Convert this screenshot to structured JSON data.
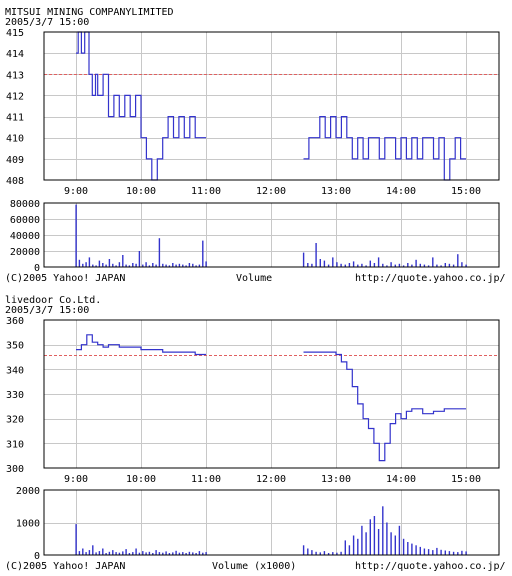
{
  "panels": [
    {
      "company": "MITSUI  MINING  COMPANYLIMITED",
      "datetime": "2005/3/7 15:00",
      "copyright": "(C)2005 Yahoo! JAPAN",
      "volume_label": "Volume",
      "url": "http://quote.yahoo.co.jp/"
    },
    {
      "company": "livedoor  Co.Ltd.",
      "datetime": "2005/3/7 15:00",
      "copyright": "(C)2005 Yahoo! JAPAN",
      "volume_label": "Volume (x1000)",
      "url": "http://quote.yahoo.co.jp/"
    }
  ],
  "colors": {
    "series": "#3333cc",
    "reference": "#e06060",
    "grid": "#c8c8c8"
  },
  "chart_data": [
    {
      "type": "line",
      "x_ticks": [
        "9:00",
        "10:00",
        "11:00",
        "12:00",
        "13:00",
        "14:00",
        "15:00"
      ],
      "y_ticks": [
        408,
        409,
        410,
        411,
        412,
        413,
        414,
        415
      ],
      "ylim": [
        408,
        415
      ],
      "reference_value": 413,
      "grid": true,
      "price_series": {
        "x": [
          "9:00",
          "9:02",
          "9:05",
          "9:08",
          "9:12",
          "9:15",
          "9:18",
          "9:20",
          "9:25",
          "9:30",
          "9:35",
          "9:40",
          "9:45",
          "9:50",
          "9:55",
          "10:00",
          "10:05",
          "10:10",
          "10:15",
          "10:20",
          "10:25",
          "10:30",
          "10:35",
          "10:40",
          "10:45",
          "10:50",
          "10:55",
          "11:00",
          "12:30",
          "12:35",
          "12:40",
          "12:45",
          "12:50",
          "12:55",
          "13:00",
          "13:05",
          "13:10",
          "13:15",
          "13:20",
          "13:25",
          "13:30",
          "13:35",
          "13:40",
          "13:45",
          "13:50",
          "13:55",
          "14:00",
          "14:05",
          "14:10",
          "14:15",
          "14:20",
          "14:25",
          "14:30",
          "14:35",
          "14:40",
          "14:45",
          "14:50",
          "14:55",
          "15:00"
        ],
        "y": [
          414,
          415,
          414,
          415,
          413,
          412,
          413,
          412,
          413,
          411,
          412,
          411,
          412,
          411,
          412,
          410,
          409,
          408,
          409,
          410,
          411,
          410,
          411,
          410,
          411,
          410,
          410,
          410,
          409,
          410,
          410,
          411,
          410,
          411,
          410,
          411,
          410,
          409,
          410,
          409,
          410,
          410,
          409,
          410,
          410,
          409,
          410,
          409,
          410,
          409,
          410,
          410,
          409,
          410,
          408,
          409,
          410,
          409,
          409
        ]
      },
      "volume": {
        "ylabel": "Volume",
        "y_ticks": [
          0,
          20000,
          40000,
          60000,
          80000
        ],
        "ylim": [
          0,
          80000
        ],
        "values": [
          78000,
          9000,
          4000,
          6000,
          12000,
          3000,
          2000,
          8000,
          5000,
          3000,
          10000,
          4000,
          2000,
          6000,
          15000,
          3000,
          2000,
          5000,
          4000,
          20000,
          3000,
          6000,
          2000,
          5000,
          3000,
          36000,
          4000,
          3000,
          2000,
          5000,
          3000,
          4000,
          3000,
          2000,
          5000,
          4000,
          2000,
          3000,
          33000,
          7000,
          18000,
          5000,
          4000,
          30000,
          10000,
          8000,
          3000,
          12000,
          6000,
          4000,
          3000,
          5000,
          7000,
          3000,
          4000,
          2000,
          8000,
          5000,
          12000,
          4000,
          2000,
          6000,
          3000,
          4000,
          2000,
          5000,
          3000,
          9000,
          4000,
          3000,
          2000,
          12000,
          3000,
          2000,
          5000,
          4000,
          3000,
          16000,
          6000,
          3000
        ]
      }
    },
    {
      "type": "line",
      "x_ticks": [
        "9:00",
        "10:00",
        "11:00",
        "12:00",
        "13:00",
        "14:00",
        "15:00"
      ],
      "y_ticks": [
        300,
        310,
        320,
        330,
        340,
        350,
        360
      ],
      "ylim": [
        300,
        360
      ],
      "reference_value": 346,
      "grid": true,
      "price_series": {
        "x": [
          "9:00",
          "9:05",
          "9:10",
          "9:15",
          "9:20",
          "9:25",
          "9:30",
          "9:40",
          "9:50",
          "10:00",
          "10:10",
          "10:20",
          "10:30",
          "10:40",
          "10:50",
          "11:00",
          "12:30",
          "12:40",
          "12:50",
          "13:00",
          "13:05",
          "13:10",
          "13:15",
          "13:20",
          "13:25",
          "13:30",
          "13:35",
          "13:40",
          "13:45",
          "13:50",
          "13:55",
          "14:00",
          "14:05",
          "14:10",
          "14:20",
          "14:30",
          "14:40",
          "14:50",
          "15:00"
        ],
        "y": [
          348,
          350,
          354,
          351,
          350,
          349,
          350,
          349,
          349,
          348,
          348,
          347,
          347,
          347,
          346,
          346,
          347,
          347,
          347,
          346,
          343,
          340,
          333,
          326,
          320,
          316,
          310,
          303,
          310,
          318,
          322,
          320,
          323,
          324,
          322,
          323,
          324,
          324,
          324
        ]
      },
      "volume": {
        "ylabel": "Volume (x1000)",
        "y_ticks": [
          0,
          1000,
          2000
        ],
        "ylim": [
          0,
          2000
        ],
        "values": [
          950,
          120,
          200,
          90,
          150,
          300,
          80,
          120,
          200,
          60,
          100,
          150,
          90,
          70,
          110,
          180,
          60,
          90,
          200,
          70,
          120,
          80,
          100,
          60,
          150,
          90,
          70,
          110,
          60,
          80,
          130,
          70,
          90,
          60,
          100,
          80,
          60,
          120,
          70,
          90,
          300,
          200,
          150,
          100,
          80,
          120,
          60,
          90,
          70,
          100,
          450,
          300,
          600,
          500,
          900,
          700,
          1100,
          1200,
          800,
          1500,
          1000,
          700,
          600,
          900,
          500,
          400,
          350,
          300,
          250,
          200,
          180,
          150,
          220,
          160,
          140,
          120,
          100,
          90,
          130,
          110
        ]
      }
    }
  ]
}
